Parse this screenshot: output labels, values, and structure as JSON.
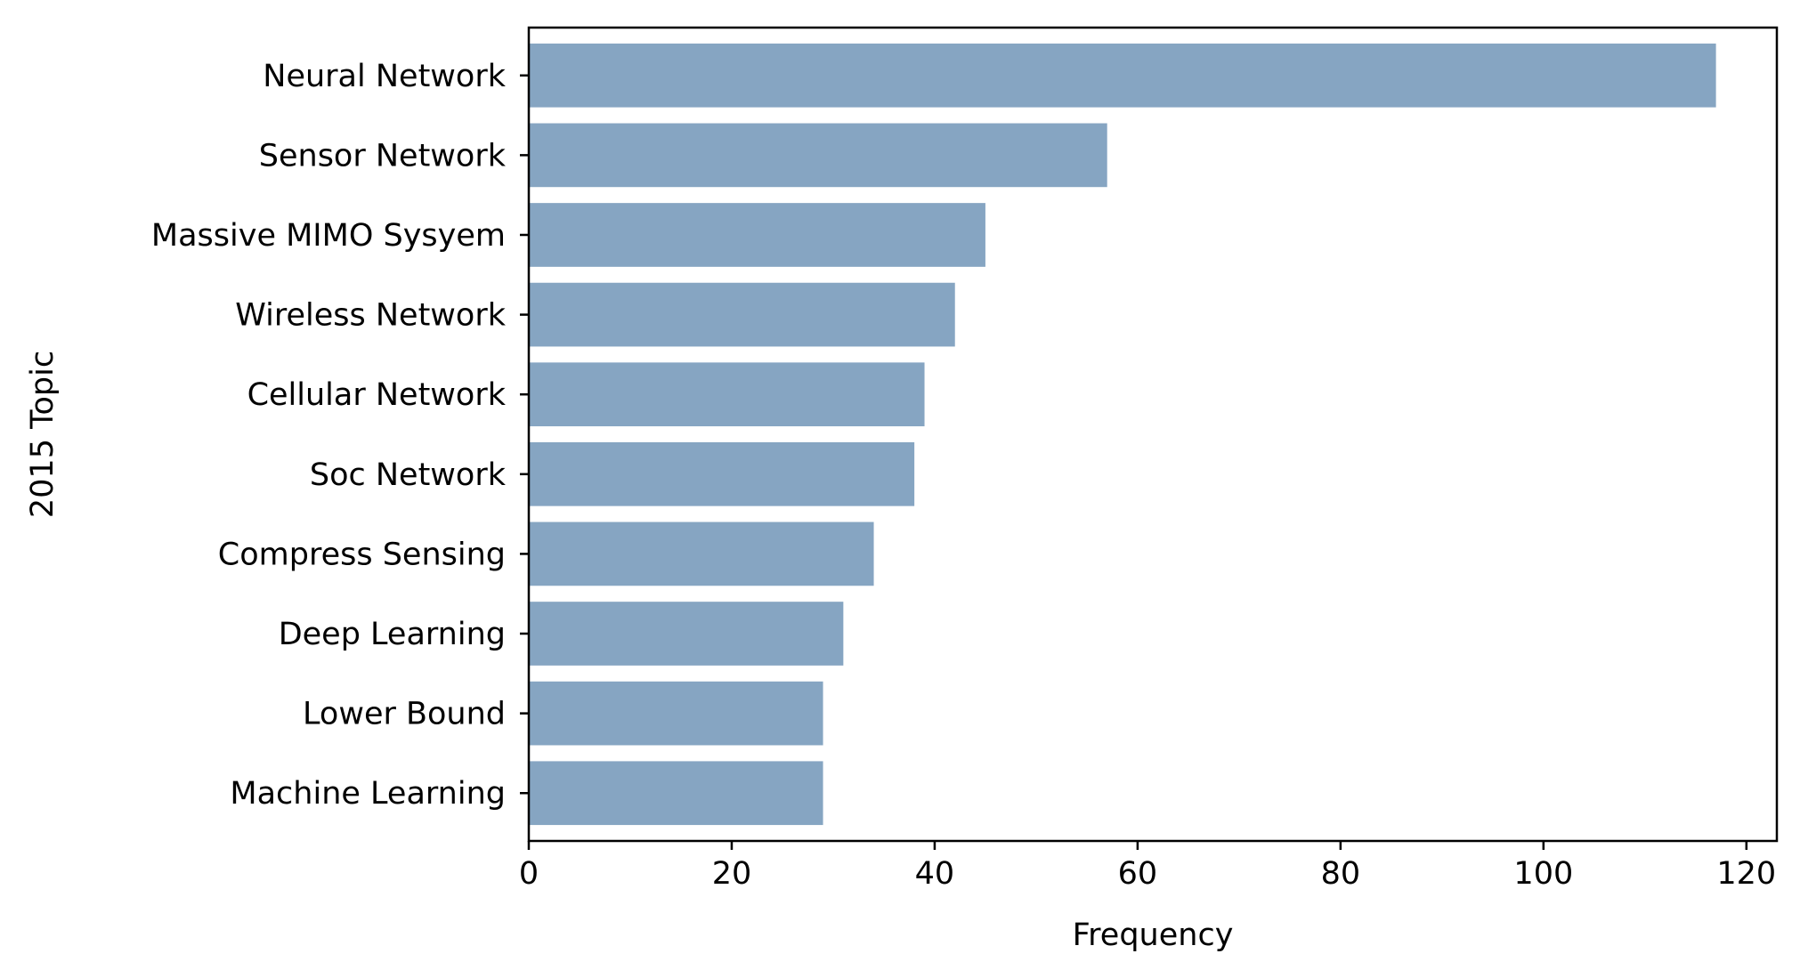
{
  "chart_data": {
    "type": "bar",
    "orientation": "horizontal",
    "title": "",
    "xlabel": "Frequency",
    "ylabel": "2015 Topic",
    "categories": [
      "Neural Network",
      "Sensor Network",
      "Massive MIMO Sysyem",
      "Wireless Network",
      "Cellular Network",
      "Soc Network",
      "Compress Sensing",
      "Deep Learning",
      "Lower Bound",
      "Machine Learning"
    ],
    "values": [
      117,
      57,
      45,
      42,
      39,
      38,
      34,
      31,
      29,
      29
    ],
    "xlim": [
      0,
      123
    ],
    "xticks": [
      0,
      20,
      40,
      60,
      80,
      100,
      120
    ],
    "xtick_labels": [
      "0",
      "20",
      "40",
      "60",
      "80",
      "100",
      "120"
    ],
    "bar_color": "#86a5c2",
    "grid": false,
    "legend": "none"
  }
}
